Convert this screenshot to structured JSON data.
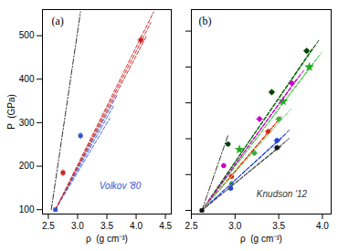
{
  "chart_data": [
    {
      "type": "scatter",
      "xlabel": "ρ  (g cm⁻³)",
      "ylabel": "P  (GPa)",
      "xlim": [
        2.4,
        4.6
      ],
      "ylim": [
        90,
        560
      ],
      "xticks": [
        2.5,
        {
          "value": 3,
          "label": "3.0"
        },
        3.5,
        {
          "value": 4,
          "label": "4.0"
        },
        4.5
      ],
      "yticks": [
        100,
        200,
        300,
        400,
        500
      ],
      "grid": false,
      "annotations": [
        {
          "text": "(a)"
        },
        {
          "text": "Volkov '80",
          "color": "#3355cc"
        }
      ],
      "series": [
        {
          "type": "line",
          "line_style": "dashdot",
          "color": "#333333",
          "x": [
            2.55,
            3.05
          ],
          "values": [
            100,
            555
          ]
        },
        {
          "type": "line",
          "line_style": "dashed",
          "color": "#4466dd",
          "x": [
            2.62,
            3.55
          ],
          "values": [
            100,
            310
          ]
        },
        {
          "type": "line",
          "line_style": "dashed",
          "color": "#4466dd",
          "x": [
            2.62,
            3.62
          ],
          "values": [
            100,
            340
          ]
        },
        {
          "type": "line",
          "line_style": "dashed",
          "color": "#4466dd",
          "x": [
            2.62,
            3.68
          ],
          "values": [
            100,
            365
          ]
        },
        {
          "type": "line",
          "line_style": "dashed",
          "color": "#cc3333",
          "x": [
            2.62,
            4.18
          ],
          "values": [
            100,
            500
          ]
        },
        {
          "type": "line",
          "line_style": "dashed",
          "color": "#cc3333",
          "x": [
            2.62,
            4.25
          ],
          "values": [
            100,
            530
          ]
        },
        {
          "type": "line",
          "line_style": "dashed",
          "color": "#cc3333",
          "x": [
            2.62,
            4.3
          ],
          "values": [
            100,
            555
          ]
        },
        {
          "type": "scatter",
          "marker": "square",
          "color": "#3355cc",
          "x": [
            2.62,
            3.05
          ],
          "values": [
            100,
            270
          ],
          "xerr": [
            0.03,
            0.04
          ],
          "yerr": [
            5,
            8
          ]
        },
        {
          "type": "scatter",
          "marker": "square",
          "color": "#cc2222",
          "x": [
            2.75,
            4.08
          ],
          "values": [
            185,
            490
          ],
          "xerr": [
            0.04,
            0.06
          ],
          "yerr": [
            8,
            10
          ]
        }
      ]
    },
    {
      "type": "scatter",
      "xlabel": "ρ  (g cm⁻³)",
      "xlim": [
        2.5,
        4.1
      ],
      "ylim": [
        90,
        660
      ],
      "xticks": [
        2.5,
        {
          "value": 3,
          "label": "3.0"
        },
        3.5,
        {
          "value": 4,
          "label": "4.0"
        }
      ],
      "yticks": [
        100,
        200,
        300,
        400,
        500,
        600
      ],
      "tick_labels": "x",
      "grid": false,
      "annotations": [
        {
          "text": "(b)"
        },
        {
          "text": "Knudson '12",
          "color": "#333333"
        }
      ],
      "series": [
        {
          "type": "line",
          "line_style": "dashdot",
          "color": "#333333",
          "x": [
            2.62,
            2.92
          ],
          "values": [
            100,
            310
          ]
        },
        {
          "type": "line",
          "line_style": "dashed",
          "color": "#006600",
          "x": [
            2.62,
            3.88
          ],
          "values": [
            100,
            550
          ]
        },
        {
          "type": "line",
          "line_style": "dashed",
          "color": "#006600",
          "x": [
            2.62,
            3.93
          ],
          "values": [
            100,
            565
          ]
        },
        {
          "type": "line",
          "line_style": "dashed",
          "color": "#006600",
          "x": [
            2.62,
            3.97
          ],
          "values": [
            100,
            578
          ]
        },
        {
          "type": "scatter",
          "marker": "circle",
          "color": "#004400",
          "x": [
            2.92,
            3.42,
            3.82
          ],
          "values": [
            285,
            430,
            545
          ],
          "xerr": [
            0.03,
            0.04,
            0.04
          ],
          "yerr": [
            7,
            9,
            9
          ]
        },
        {
          "type": "line",
          "line_style": "dashed",
          "color": "#44cc44",
          "x": [
            2.62,
            3.9
          ],
          "values": [
            100,
            512
          ]
        },
        {
          "type": "line",
          "line_style": "dashed",
          "color": "#44cc44",
          "x": [
            2.62,
            3.95
          ],
          "values": [
            100,
            528
          ]
        },
        {
          "type": "line",
          "line_style": "dashed",
          "color": "#44cc44",
          "x": [
            2.62,
            3.99
          ],
          "values": [
            100,
            540
          ]
        },
        {
          "type": "scatter",
          "marker": "star",
          "color": "#22aa22",
          "x": [
            3.05,
            3.55,
            3.85
          ],
          "values": [
            270,
            405,
            500
          ],
          "xerr": [
            0.03,
            0.04,
            0.04
          ],
          "yerr": [
            7,
            9,
            9
          ]
        },
        {
          "type": "line",
          "line_style": "dashed",
          "color": "#cc00cc",
          "x": [
            2.62,
            3.7
          ],
          "values": [
            100,
            465
          ]
        },
        {
          "type": "line",
          "line_style": "dashed",
          "color": "#cc00cc",
          "x": [
            2.62,
            3.75
          ],
          "values": [
            100,
            480
          ]
        },
        {
          "type": "line",
          "line_style": "dashed",
          "color": "#cc00cc",
          "x": [
            2.62,
            3.8
          ],
          "values": [
            100,
            495
          ]
        },
        {
          "type": "scatter",
          "marker": "circle",
          "color": "#cc00cc",
          "x": [
            2.87,
            3.28,
            3.65
          ],
          "values": [
            225,
            355,
            455
          ],
          "xerr": [
            0.03,
            0.04,
            0.04
          ],
          "yerr": [
            7,
            9,
            9
          ]
        },
        {
          "type": "line",
          "line_style": "dashed",
          "color": "#dd2200",
          "x": [
            2.62,
            3.44
          ],
          "values": [
            100,
            335
          ]
        },
        {
          "type": "line",
          "line_style": "dashed",
          "color": "#dd2200",
          "x": [
            2.62,
            3.49
          ],
          "values": [
            100,
            350
          ]
        },
        {
          "type": "line",
          "line_style": "dashed",
          "color": "#dd2200",
          "x": [
            2.62,
            3.53
          ],
          "values": [
            100,
            362
          ]
        },
        {
          "type": "scatter",
          "marker": "circle",
          "color": "#dd2200",
          "x": [
            2.96,
            3.38
          ],
          "values": [
            195,
            320
          ],
          "xerr": [
            0.03,
            0.04
          ],
          "yerr": [
            7,
            8
          ]
        },
        {
          "type": "line",
          "line_style": "dashed",
          "color": "#88dd88",
          "x": [
            2.62,
            3.56
          ],
          "values": [
            100,
            362
          ]
        },
        {
          "type": "line",
          "line_style": "dashed",
          "color": "#88dd88",
          "x": [
            2.62,
            3.61
          ],
          "values": [
            100,
            375
          ]
        },
        {
          "type": "line",
          "line_style": "dashed",
          "color": "#88dd88",
          "x": [
            2.62,
            3.65
          ],
          "values": [
            100,
            386
          ]
        },
        {
          "type": "scatter",
          "marker": "circle",
          "color": "#44aa44",
          "x": [
            2.96,
            3.22,
            3.5
          ],
          "values": [
            175,
            260,
            355
          ],
          "xerr": [
            0.03,
            0.04,
            0.04
          ],
          "yerr": [
            7,
            8,
            8
          ]
        },
        {
          "type": "line",
          "line_style": "dashed",
          "color": "#2244dd",
          "x": [
            2.62,
            3.54
          ],
          "values": [
            100,
            303
          ]
        },
        {
          "type": "line",
          "line_style": "dashed",
          "color": "#2244dd",
          "x": [
            2.62,
            3.59
          ],
          "values": [
            100,
            315
          ]
        },
        {
          "type": "line",
          "line_style": "dashed",
          "color": "#2244dd",
          "x": [
            2.62,
            3.63
          ],
          "values": [
            100,
            326
          ]
        },
        {
          "type": "scatter",
          "marker": "circle",
          "color": "#2244dd",
          "x": [
            2.95,
            3.48
          ],
          "values": [
            162,
            295
          ],
          "xerr": [
            0.03,
            0.04
          ],
          "yerr": [
            7,
            8
          ]
        },
        {
          "type": "line",
          "line_style": "dashed",
          "color": "#555555",
          "x": [
            2.62,
            3.54
          ],
          "values": [
            100,
            282
          ]
        },
        {
          "type": "line",
          "line_style": "dashed",
          "color": "#555555",
          "x": [
            2.62,
            3.59
          ],
          "values": [
            100,
            294
          ]
        },
        {
          "type": "line",
          "line_style": "dashed",
          "color": "#555555",
          "x": [
            2.62,
            3.63
          ],
          "values": [
            100,
            303
          ]
        },
        {
          "type": "scatter",
          "marker": "square",
          "color": "#111111",
          "x": [
            2.62,
            3.48
          ],
          "values": [
            100,
            275
          ],
          "xerr": [
            0.03,
            0.04
          ],
          "yerr": [
            5,
            8
          ]
        }
      ]
    }
  ]
}
